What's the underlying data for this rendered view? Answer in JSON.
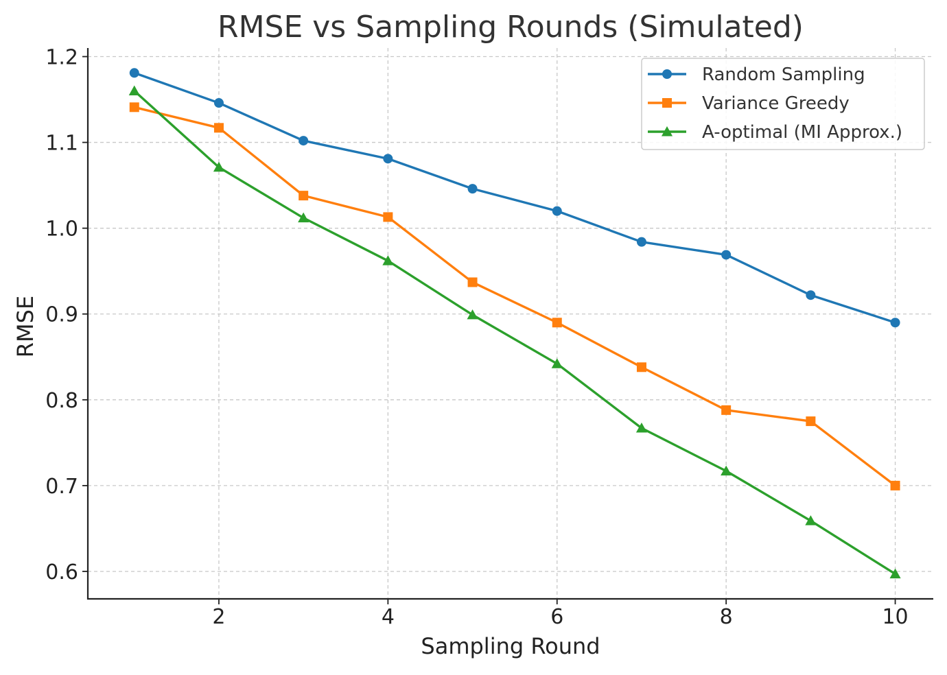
{
  "chart_data": {
    "type": "line",
    "title": "RMSE vs Sampling Rounds (Simulated)",
    "xlabel": "Sampling Round",
    "ylabel": "RMSE",
    "x": [
      1,
      2,
      3,
      4,
      5,
      6,
      7,
      8,
      9,
      10
    ],
    "xticks": [
      2,
      4,
      6,
      8,
      10
    ],
    "yticks": [
      0.6,
      0.7,
      0.8,
      0.9,
      1.0,
      1.1,
      1.2
    ],
    "ytick_labels": [
      "0.6",
      "0.7",
      "0.8",
      "0.9",
      "1.0",
      "1.1",
      "1.2"
    ],
    "xlim": [
      0.45,
      10.45
    ],
    "ylim": [
      0.568,
      1.21
    ],
    "grid": true,
    "legend_position": "top-right",
    "series": [
      {
        "name": "Random Sampling",
        "color": "#1f77b4",
        "marker": "circle",
        "values": [
          1.181,
          1.146,
          1.102,
          1.081,
          1.046,
          1.02,
          0.984,
          0.969,
          0.922,
          0.89
        ]
      },
      {
        "name": "Variance Greedy",
        "color": "#ff7f0e",
        "marker": "square",
        "values": [
          1.141,
          1.117,
          1.038,
          1.013,
          0.937,
          0.89,
          0.838,
          0.788,
          0.775,
          0.7
        ]
      },
      {
        "name": "A-optimal (MI Approx.)",
        "color": "#2ca02c",
        "marker": "triangle",
        "values": [
          1.16,
          1.071,
          1.012,
          0.962,
          0.899,
          0.842,
          0.767,
          0.717,
          0.659,
          0.597
        ]
      }
    ]
  }
}
